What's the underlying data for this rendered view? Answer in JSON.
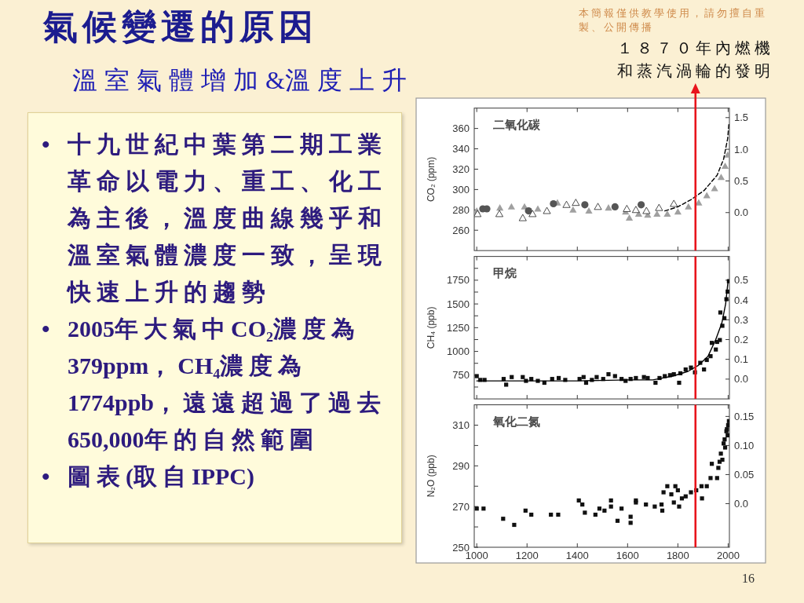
{
  "chart_data": [
    {
      "type": "other",
      "title": "氣候變遷的原因",
      "subtitle": "溫室氣體增加&溫度上升",
      "annotations": [
        "• 十九世紀中葉第二期工業革命以電力、重工、化工為主後，溫度曲線幾乎和溫室氣體濃度一致，呈現快速上升的趨勢",
        "• 2005年大氣中CO₂濃度為379ppm，CH₄濃度為1774ppb，遠遠超過了過去650,000年的自然範圍",
        "• 圖表(取自IPPC)",
        "本簡報僅供教學使用，請勿擅自重製、公開傳播",
        "16"
      ]
    },
    {
      "type": "scatter",
      "title": "二氧化碳",
      "ylabel": "CO₂ (ppm)",
      "xlim": [
        990,
        2005
      ],
      "xticks": [
        {
          "value": 1000,
          "label": null
        },
        {
          "value": 1200,
          "label": null
        },
        {
          "value": 1400,
          "label": null
        },
        {
          "value": 1600,
          "label": null
        },
        {
          "value": 1800,
          "label": null
        },
        {
          "value": 2000,
          "label": null
        }
      ],
      "ylim": [
        240,
        380
      ],
      "yticks": [
        260,
        280,
        300,
        320,
        340,
        360
      ],
      "y2lim": [
        -0.6,
        1.65
      ],
      "y2ticks": [
        {
          "value": 0,
          "label": "0.0"
        },
        0.5,
        {
          "value": 1,
          "label": "1.0"
        },
        1.5
      ],
      "tick_labels": "y",
      "series": [
        {
          "color": "#a0a0a0",
          "marker": "triangle",
          "x": [
            1000,
            1092,
            1138,
            1190,
            1243,
            1321,
            1383,
            1446,
            1524,
            1592,
            1607,
            1644,
            1680,
            1717,
            1758,
            1800,
            1842,
            1883,
            1915,
            1946,
            1972,
            1988,
            1998
          ],
          "values": [
            279,
            282,
            283,
            283,
            281,
            287,
            280,
            279,
            282,
            278,
            272,
            276,
            275,
            276,
            276,
            278,
            283,
            287,
            294,
            301,
            312,
            323,
            334
          ]
        },
        {
          "color": "#555555",
          "marker": "circle",
          "x": [
            1024,
            1040,
            1206,
            1305,
            1430,
            1550,
            1654
          ],
          "values": [
            281,
            281,
            279,
            286,
            285,
            283,
            285
          ]
        },
        {
          "color": "#ffffff",
          "marker": "triangle",
          "x": [
            1003,
            1090,
            1183,
            1222,
            1279,
            1357,
            1394,
            1482,
            1597,
            1633,
            1675,
            1725,
            1784
          ],
          "values": [
            276,
            276,
            272,
            276,
            279,
            285,
            287,
            283,
            281,
            280,
            279,
            282,
            286
          ]
        },
        {
          "type": "line",
          "color": "#000000",
          "line_style": "dashed",
          "x": [
            1748,
            1800,
            1852,
            1904,
            1956,
            1982,
            1998,
            2003
          ],
          "values": [
            279,
            283,
            290,
            299,
            314,
            330,
            350,
            365
          ]
        }
      ],
      "ref_lines": [
        {
          "axis": "x",
          "value": 1870,
          "label": "１８７０年內燃機和蒸汽渦輪的發明",
          "color": "#e8141c"
        }
      ]
    },
    {
      "type": "scatter",
      "title": "甲烷",
      "ylabel": "CH₄ (ppb)",
      "xlim": [
        990,
        2005
      ],
      "xticks": [
        {
          "value": 1000,
          "label": null
        },
        {
          "value": 1200,
          "label": null
        },
        {
          "value": 1400,
          "label": null
        },
        {
          "value": 1600,
          "label": null
        },
        {
          "value": 1800,
          "label": null
        },
        {
          "value": 2000,
          "label": null
        }
      ],
      "ylim": [
        500,
        2000
      ],
      "yticks": [
        {
          "value": 625,
          "label": null
        },
        750,
        {
          "value": 875,
          "label": null
        },
        1000,
        {
          "value": 1125,
          "label": null
        },
        1250,
        {
          "value": 1375,
          "label": null
        },
        1500,
        {
          "value": 1625,
          "label": null
        },
        1750,
        {
          "value": 1875,
          "label": null
        }
      ],
      "y2lim": [
        -0.1,
        0.62
      ],
      "y2ticks": [
        {
          "value": 0,
          "label": "0.0"
        },
        0.1,
        0.2,
        0.3,
        0.4,
        0.5
      ],
      "tick_labels": "y",
      "series": [
        {
          "color": "#111111",
          "marker": "square",
          "x": [
            1000,
            1014,
            1031,
            1107,
            1117,
            1139,
            1183,
            1196,
            1217,
            1243,
            1269,
            1300,
            1326,
            1352,
            1409,
            1425,
            1435,
            1458,
            1477,
            1503,
            1524,
            1550,
            1576,
            1592,
            1612,
            1633,
            1665,
            1680,
            1711,
            1727,
            1748,
            1769,
            1784,
            1805,
            1810,
            1831,
            1852,
            1868,
            1889,
            1904,
            1915,
            1930,
            1935,
            1951,
            1956,
            1967,
            1969,
            1977,
            1985,
            1993,
            1998,
            2003
          ],
          "values": [
            740,
            700,
            700,
            710,
            650,
            730,
            730,
            690,
            710,
            690,
            670,
            710,
            720,
            700,
            710,
            730,
            670,
            700,
            730,
            710,
            760,
            740,
            710,
            690,
            710,
            720,
            730,
            720,
            670,
            720,
            740,
            750,
            760,
            670,
            770,
            810,
            830,
            780,
            880,
            810,
            910,
            950,
            1090,
            1020,
            1100,
            1120,
            1410,
            1270,
            1350,
            1550,
            1630,
            1740
          ]
        },
        {
          "type": "line",
          "color": "#000000",
          "x": [
            1000,
            1200,
            1400,
            1600,
            1700,
            1780,
            1840,
            1880,
            1920,
            1950,
            1975,
            1990,
            2000
          ],
          "values": [
            690,
            690,
            690,
            700,
            700,
            740,
            790,
            850,
            950,
            1120,
            1300,
            1500,
            1750
          ]
        }
      ],
      "ref_lines": [
        {
          "axis": "x",
          "value": 1870,
          "color": "#e8141c"
        }
      ]
    },
    {
      "type": "scatter",
      "title": "氧化二氮",
      "ylabel": "N₂O (ppb)",
      "xlim": [
        990,
        2005
      ],
      "xticks": [
        1000,
        1200,
        1400,
        1600,
        1800,
        2000
      ],
      "ylim": [
        250,
        320
      ],
      "yticks": [
        250,
        {
          "value": 260,
          "label": null
        },
        270,
        {
          "value": 280,
          "label": null
        },
        290,
        {
          "value": 300,
          "label": null
        },
        310
      ],
      "y2lim": [
        -0.075,
        0.17
      ],
      "y2ticks": [
        {
          "value": 0,
          "label": "0.0"
        },
        0.05,
        {
          "value": 0.1,
          "label": "0.10"
        },
        0.15
      ],
      "series": [
        {
          "color": "#111111",
          "marker": "square",
          "x": [
            1000,
            1027,
            1105,
            1149,
            1194,
            1217,
            1295,
            1324,
            1406,
            1420,
            1430,
            1472,
            1488,
            1508,
            1534,
            1534,
            1560,
            1576,
            1612,
            1612,
            1633,
            1633,
            1673,
            1708,
            1735,
            1738,
            1743,
            1758,
            1774,
            1784,
            1790,
            1800,
            1805,
            1816,
            1831,
            1852,
            1873,
            1894,
            1896,
            1915,
            1930,
            1935,
            1956,
            1961,
            1966,
            1971,
            1977,
            1982,
            1986,
            1988,
            1993,
            1995,
            1998,
            2000,
            2003
          ],
          "values": [
            269,
            269,
            264,
            261,
            268,
            266,
            266,
            266,
            273,
            271,
            267,
            266,
            269,
            268,
            273,
            270,
            263,
            269,
            265,
            262,
            273,
            272,
            271,
            270,
            271,
            268,
            277,
            280,
            276,
            272,
            280,
            278,
            270,
            274,
            275,
            277,
            278,
            280,
            274,
            280,
            284,
            291,
            284,
            289,
            292,
            296,
            293,
            301,
            303,
            299,
            307,
            308,
            305,
            310,
            312
          ]
        }
      ],
      "ref_lines": [
        {
          "axis": "x",
          "value": 1870,
          "color": "#e8141c"
        }
      ]
    }
  ]
}
